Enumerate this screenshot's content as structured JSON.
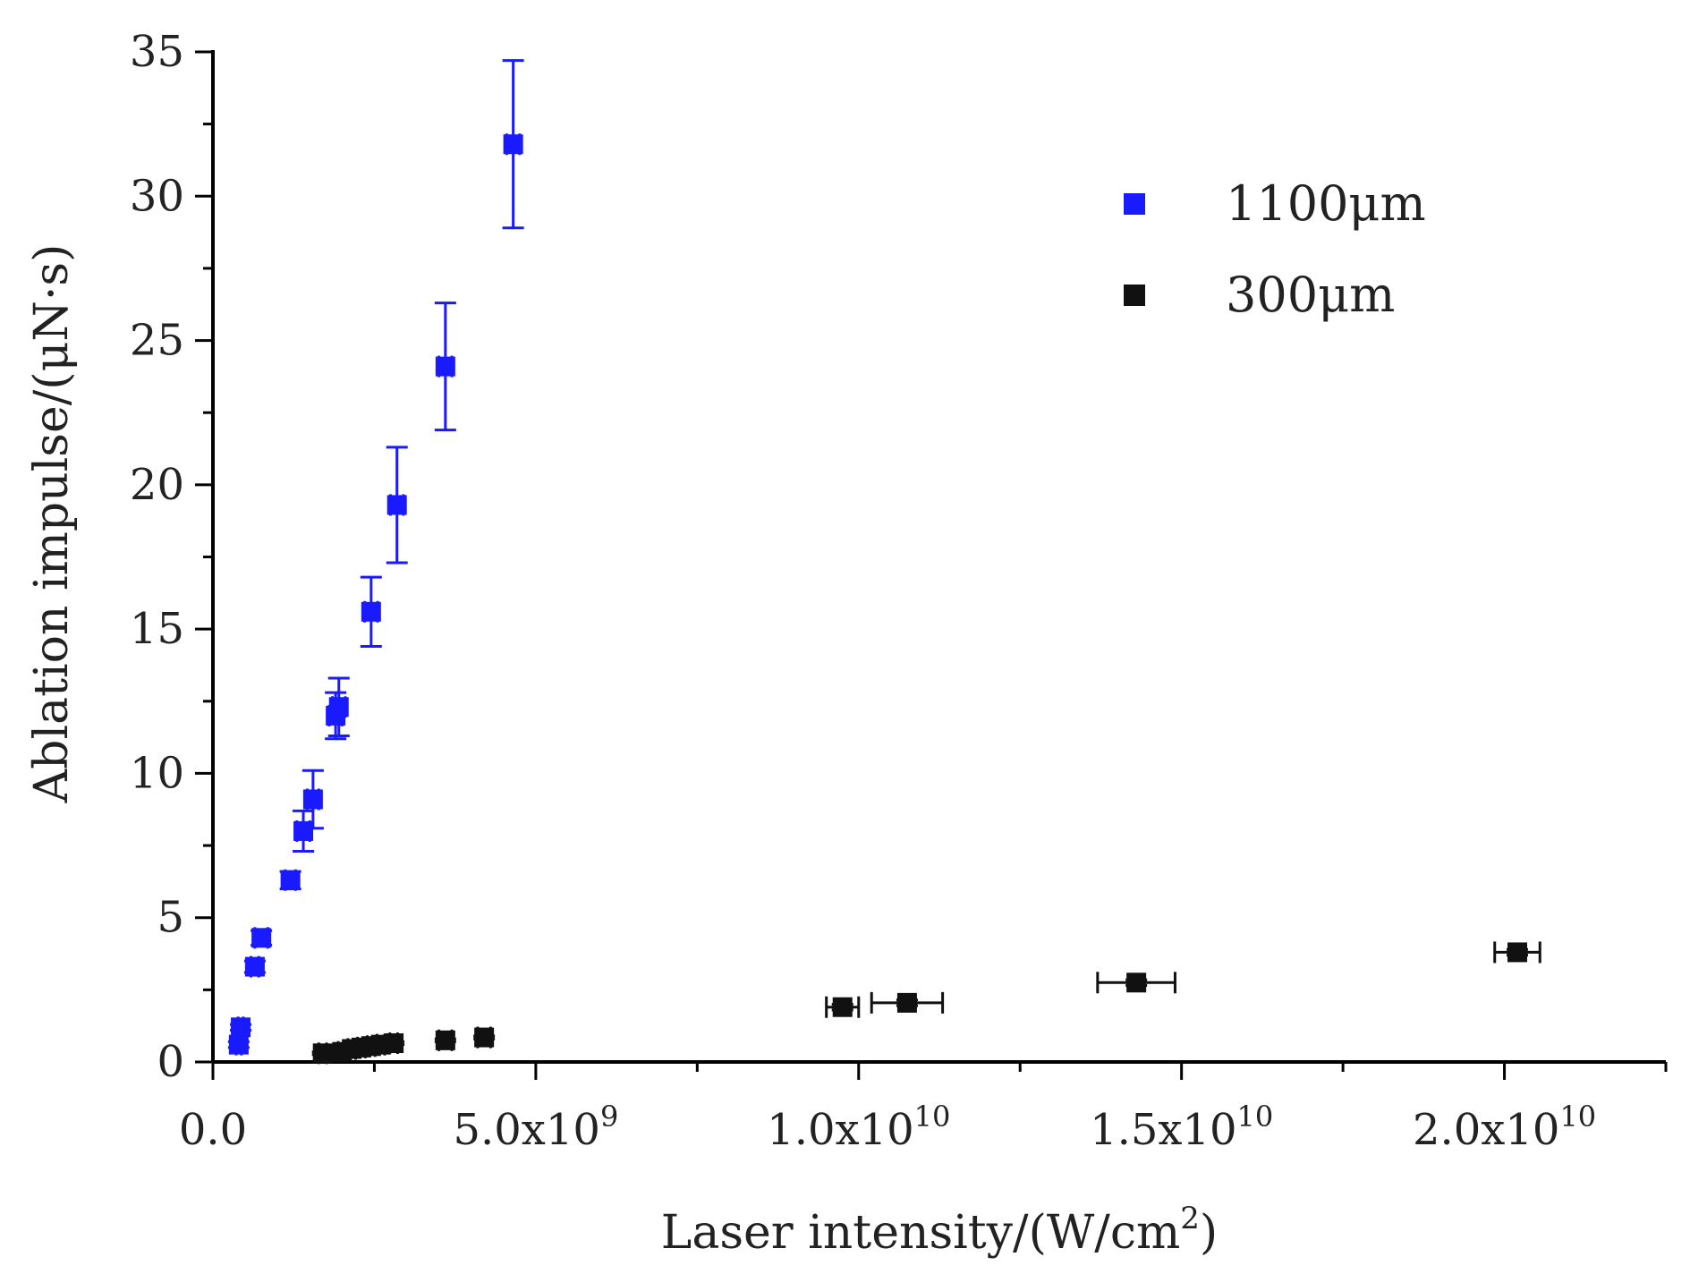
{
  "chart_data": {
    "type": "scatter",
    "title": "",
    "xlabel": "Laser intensity/(W/cm",
    "xlabel_sup": "2",
    "xlabel_end": ")",
    "ylabel": "Ablation impulse/(μN·s)",
    "xlim": [
      0,
      22500000000
    ],
    "ylim": [
      0,
      35
    ],
    "x_ticks": [
      {
        "value": 0,
        "mantissa": "0.0",
        "times": "",
        "exp": ""
      },
      {
        "value": 5000000000,
        "mantissa": "5.0",
        "times": "x10",
        "exp": "9"
      },
      {
        "value": 10000000000,
        "mantissa": "1.0",
        "times": "x10",
        "exp": "10"
      },
      {
        "value": 15000000000,
        "mantissa": "1.5",
        "times": "x10",
        "exp": "10"
      },
      {
        "value": 20000000000,
        "mantissa": "2.0",
        "times": "x10",
        "exp": "10"
      }
    ],
    "x_minor_ticks": [
      2500000000,
      7500000000,
      12500000000,
      17500000000,
      22500000000
    ],
    "y_ticks": [
      0,
      5,
      10,
      15,
      20,
      25,
      30,
      35
    ],
    "y_tick_labels": [
      "0",
      "5",
      "10",
      "15",
      "20",
      "25",
      "30",
      "35"
    ],
    "legend_position": "top-right",
    "series": [
      {
        "name": "1100μm",
        "color": "#1a1aff",
        "points": [
          {
            "x": 400000000,
            "y": 0.6,
            "yerr": 0.1,
            "xerr": 40000000
          },
          {
            "x": 430000000,
            "y": 1.2,
            "yerr": 0.1,
            "xerr": 40000000
          },
          {
            "x": 650000000,
            "y": 3.3,
            "yerr": 0.2,
            "xerr": 60000000
          },
          {
            "x": 750000000,
            "y": 4.3,
            "yerr": 0.25,
            "xerr": 100000000
          },
          {
            "x": 1200000000,
            "y": 6.3,
            "yerr": 0.3,
            "xerr": 80000000
          },
          {
            "x": 1400000000,
            "y": 8.0,
            "yerr": 0.7,
            "xerr": 100000000
          },
          {
            "x": 1550000000,
            "y": 9.1,
            "yerr": 1.0,
            "xerr": 90000000
          },
          {
            "x": 1900000000,
            "y": 12.0,
            "yerr": 0.8,
            "xerr": 100000000
          },
          {
            "x": 1950000000,
            "y": 12.3,
            "yerr": 1.0,
            "xerr": 100000000
          },
          {
            "x": 2450000000,
            "y": 15.6,
            "yerr": 1.2,
            "xerr": 100000000
          },
          {
            "x": 2850000000,
            "y": 19.3,
            "yerr": 2.0,
            "xerr": 100000000
          },
          {
            "x": 3600000000,
            "y": 24.1,
            "yerr": 2.2,
            "xerr": 100000000
          },
          {
            "x": 4650000000,
            "y": 31.8,
            "yerr": 2.9,
            "xerr": 100000000
          }
        ]
      },
      {
        "name": "300μm",
        "color": "#111111",
        "points": [
          {
            "x": 1700000000,
            "y": 0.3,
            "yerr": 0.05,
            "xerr": 60000000
          },
          {
            "x": 2000000000,
            "y": 0.35,
            "yerr": 0.05,
            "xerr": 60000000
          },
          {
            "x": 2150000000,
            "y": 0.45,
            "yerr": 0.05,
            "xerr": 60000000
          },
          {
            "x": 2300000000,
            "y": 0.5,
            "yerr": 0.05,
            "xerr": 60000000
          },
          {
            "x": 2450000000,
            "y": 0.55,
            "yerr": 0.05,
            "xerr": 60000000
          },
          {
            "x": 2600000000,
            "y": 0.6,
            "yerr": 0.05,
            "xerr": 60000000
          },
          {
            "x": 2800000000,
            "y": 0.65,
            "yerr": 0.05,
            "xerr": 60000000
          },
          {
            "x": 3600000000,
            "y": 0.75,
            "yerr": 0.05,
            "xerr": 100000000
          },
          {
            "x": 4200000000,
            "y": 0.85,
            "yerr": 0.05,
            "xerr": 100000000
          },
          {
            "x": 9750000000,
            "y": 1.9,
            "yerr": 0.1,
            "xerr": 250000000
          },
          {
            "x": 10750000000,
            "y": 2.05,
            "yerr": 0.1,
            "xerr": 550000000
          },
          {
            "x": 14300000000,
            "y": 2.75,
            "yerr": 0.1,
            "xerr": 600000000
          },
          {
            "x": 20200000000,
            "y": 3.8,
            "yerr": 0.1,
            "xerr": 350000000
          }
        ]
      }
    ]
  }
}
